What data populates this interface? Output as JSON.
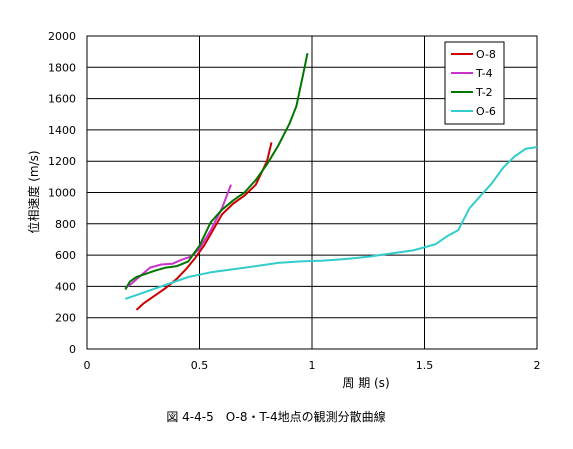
{
  "chart_data": {
    "type": "line",
    "caption": "図 4-4-5　O-8・T-4地点の観測分散曲線",
    "xlabel": "周 期 (s)",
    "ylabel": "位相速度 (m/s)",
    "xlim": [
      0,
      2
    ],
    "ylim": [
      0,
      2000
    ],
    "x_ticks": [
      0,
      0.5,
      1,
      1.5,
      2
    ],
    "x_tick_labels": [
      "0",
      "0.5",
      "1",
      "1.5",
      "2"
    ],
    "y_ticks": [
      0,
      200,
      400,
      600,
      800,
      1000,
      1200,
      1400,
      1600,
      1800,
      2000
    ],
    "y_tick_labels": [
      "0",
      "200",
      "400",
      "600",
      "800",
      "1000",
      "1200",
      "1400",
      "1600",
      "1800",
      "2000"
    ],
    "grid": true,
    "legend_position": "top-right",
    "series": [
      {
        "name": "O-8",
        "color": "#cc0000",
        "points": [
          [
            0.22,
            250
          ],
          [
            0.25,
            290
          ],
          [
            0.3,
            340
          ],
          [
            0.35,
            390
          ],
          [
            0.4,
            450
          ],
          [
            0.44,
            510
          ],
          [
            0.48,
            580
          ],
          [
            0.52,
            660
          ],
          [
            0.56,
            760
          ],
          [
            0.6,
            860
          ],
          [
            0.65,
            930
          ],
          [
            0.7,
            980
          ],
          [
            0.75,
            1050
          ],
          [
            0.8,
            1200
          ],
          [
            0.82,
            1320
          ]
        ]
      },
      {
        "name": "T-4",
        "color": "#cc33cc",
        "points": [
          [
            0.17,
            390
          ],
          [
            0.2,
            420
          ],
          [
            0.24,
            470
          ],
          [
            0.28,
            520
          ],
          [
            0.33,
            540
          ],
          [
            0.38,
            545
          ],
          [
            0.42,
            570
          ],
          [
            0.46,
            590
          ],
          [
            0.5,
            640
          ],
          [
            0.55,
            760
          ],
          [
            0.6,
            900
          ],
          [
            0.64,
            1050
          ]
        ]
      },
      {
        "name": "T-2",
        "color": "#007700",
        "points": [
          [
            0.17,
            380
          ],
          [
            0.19,
            430
          ],
          [
            0.22,
            460
          ],
          [
            0.26,
            480
          ],
          [
            0.3,
            500
          ],
          [
            0.35,
            520
          ],
          [
            0.4,
            530
          ],
          [
            0.45,
            560
          ],
          [
            0.5,
            660
          ],
          [
            0.55,
            810
          ],
          [
            0.6,
            890
          ],
          [
            0.65,
            950
          ],
          [
            0.7,
            1000
          ],
          [
            0.75,
            1080
          ],
          [
            0.8,
            1180
          ],
          [
            0.85,
            1300
          ],
          [
            0.9,
            1440
          ],
          [
            0.93,
            1550
          ],
          [
            0.96,
            1750
          ],
          [
            0.98,
            1890
          ]
        ]
      },
      {
        "name": "O-6",
        "color": "#33cccc",
        "points": [
          [
            0.17,
            320
          ],
          [
            0.25,
            360
          ],
          [
            0.35,
            410
          ],
          [
            0.45,
            460
          ],
          [
            0.55,
            490
          ],
          [
            0.65,
            510
          ],
          [
            0.75,
            530
          ],
          [
            0.85,
            550
          ],
          [
            0.95,
            560
          ],
          [
            1.05,
            565
          ],
          [
            1.15,
            575
          ],
          [
            1.25,
            590
          ],
          [
            1.35,
            610
          ],
          [
            1.45,
            630
          ],
          [
            1.55,
            670
          ],
          [
            1.6,
            720
          ],
          [
            1.65,
            760
          ],
          [
            1.7,
            900
          ],
          [
            1.75,
            980
          ],
          [
            1.8,
            1060
          ],
          [
            1.85,
            1160
          ],
          [
            1.9,
            1230
          ],
          [
            1.95,
            1280
          ],
          [
            2.0,
            1290
          ]
        ]
      }
    ]
  }
}
